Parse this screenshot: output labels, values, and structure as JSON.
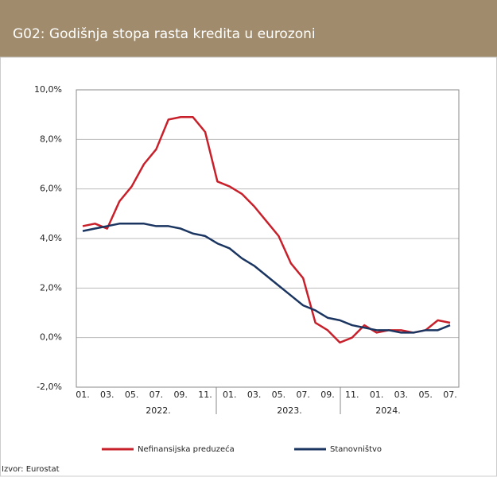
{
  "chart_data": {
    "type": "line",
    "title": "G02: Godišnja stopa rasta kredita u eurozoni",
    "categories": [
      "01.",
      null,
      "03.",
      null,
      "05.",
      null,
      "07.",
      null,
      "09.",
      null,
      "11.",
      null,
      "01.",
      null,
      "03.",
      null,
      "05.",
      null,
      "07.",
      null,
      "09.",
      null,
      "11.",
      null,
      "01.",
      null,
      "03.",
      null,
      "05.",
      null,
      "07."
    ],
    "x_groups": [
      "2022.",
      "2023.",
      "2024."
    ],
    "series": [
      {
        "name": "Nefinansijska preduzeća",
        "color": "#c8202a",
        "values": [
          4.5,
          4.6,
          4.4,
          5.5,
          6.1,
          7.0,
          7.6,
          8.8,
          8.9,
          8.9,
          8.3,
          6.3,
          6.1,
          5.8,
          5.3,
          4.7,
          4.1,
          3.0,
          2.4,
          0.6,
          0.3,
          -0.2,
          0.0,
          0.5,
          0.2,
          0.3,
          0.3,
          0.2,
          0.3,
          0.7,
          0.6
        ]
      },
      {
        "name": "Stanovništvo",
        "color": "#1b3561",
        "values": [
          4.3,
          4.4,
          4.5,
          4.6,
          4.6,
          4.6,
          4.5,
          4.5,
          4.4,
          4.2,
          4.1,
          3.8,
          3.6,
          3.2,
          2.9,
          2.5,
          2.1,
          1.7,
          1.3,
          1.1,
          0.8,
          0.7,
          0.5,
          0.4,
          0.3,
          0.3,
          0.2,
          0.2,
          0.3,
          0.3,
          0.5
        ]
      }
    ],
    "ylim": [
      -2,
      10
    ],
    "yticks": [
      {
        "value": -2,
        "label": "-2,0%"
      },
      {
        "value": 0,
        "label": "0,0%"
      },
      {
        "value": 2,
        "label": "2,0%"
      },
      {
        "value": 4,
        "label": "4,0%"
      },
      {
        "value": 6,
        "label": "6,0%"
      },
      {
        "value": 8,
        "label": "8,0%"
      },
      {
        "value": 10,
        "label": "10,0%"
      }
    ],
    "grid": true,
    "source": "Izvor: Eurostat"
  }
}
